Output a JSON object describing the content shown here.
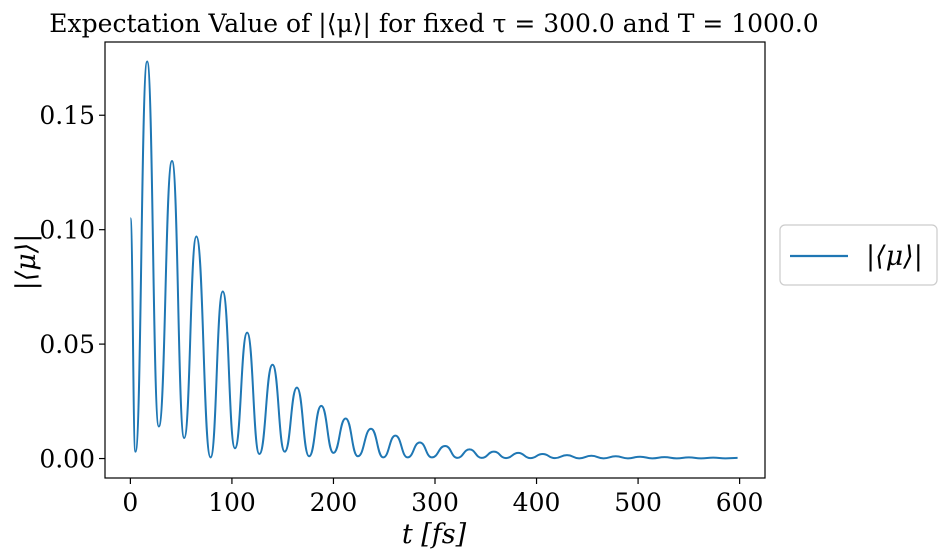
{
  "chart_data": {
    "type": "line",
    "title": "Expectation Value of |⟨μ⟩| for fixed τ = 300.0 and T = 1000.0",
    "xlabel": "t [fs]",
    "ylabel": "|⟨μ⟩|",
    "xlim": [
      -25,
      625
    ],
    "ylim": [
      -0.0085,
      0.182
    ],
    "xticks": [
      0,
      100,
      200,
      300,
      400,
      500,
      600
    ],
    "xtick_labels": [
      "0",
      "100",
      "200",
      "300",
      "400",
      "500",
      "600"
    ],
    "yticks": [
      0.0,
      0.05,
      0.1,
      0.15
    ],
    "ytick_labels": [
      "0.00",
      "0.05",
      "0.10",
      "0.15"
    ],
    "grid": false,
    "legend_position": "center-right, outside plot",
    "series": [
      {
        "name": "|⟨μ⟩|",
        "color": "#1f77b4",
        "x": [
          0,
          5,
          16.5,
          28,
          41,
          53,
          65,
          79,
          91,
          103,
          115,
          127,
          140,
          152,
          164,
          176,
          188,
          200,
          212,
          224,
          237,
          249,
          261,
          273,
          285,
          297,
          310,
          322,
          334,
          346,
          358,
          370,
          382,
          394,
          406,
          418,
          430,
          442,
          454,
          466,
          478,
          490,
          502,
          514,
          526,
          538,
          550,
          562,
          574,
          586,
          598
        ],
        "y": [
          0.105,
          0.003,
          0.1735,
          0.014,
          0.13,
          0.009,
          0.097,
          0.0005,
          0.073,
          0.0045,
          0.055,
          0.002,
          0.041,
          0.003,
          0.031,
          0.001,
          0.023,
          0.0025,
          0.0175,
          0.001,
          0.013,
          0.0005,
          0.01,
          0.0005,
          0.007,
          0.0005,
          0.0055,
          0.0003,
          0.004,
          0.0003,
          0.003,
          0.0002,
          0.0025,
          0.0002,
          0.002,
          0.0002,
          0.0015,
          0.0001,
          0.0012,
          0.0001,
          0.001,
          0.0001,
          0.0008,
          0.0001,
          0.0006,
          0.0001,
          0.0005,
          0.0001,
          0.0004,
          0.0001,
          0.0003
        ]
      }
    ]
  }
}
